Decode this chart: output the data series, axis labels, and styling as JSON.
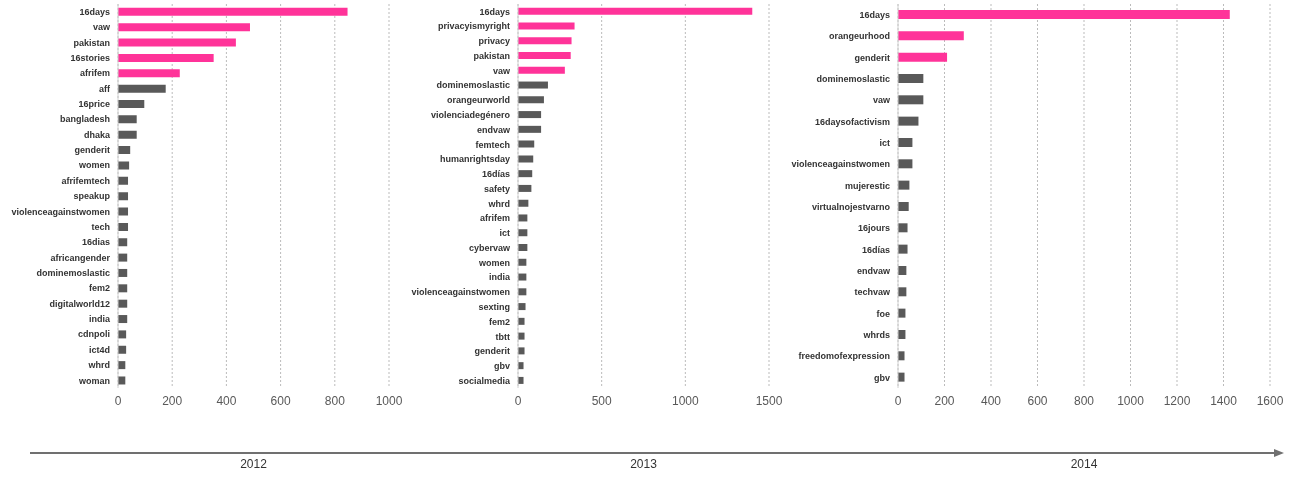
{
  "chart_data": [
    {
      "type": "bar",
      "orientation": "horizontal",
      "xlabel": "2012",
      "categories": [
        "16days",
        "vaw",
        "pakistan",
        "16stories",
        "afrifem",
        "aff",
        "16price",
        "bangladesh",
        "dhaka",
        "genderit",
        "women",
        "afrifemtech",
        "speakup",
        "violenceagainstwomen",
        "tech",
        "16dias",
        "africangender",
        "dominemoslastic",
        "fem2",
        "digitalworld12",
        "india",
        "cdnpoli",
        "ict4d",
        "whrd",
        "woman"
      ],
      "values": [
        847,
        487,
        435,
        353,
        228,
        176,
        97,
        69,
        69,
        45,
        41,
        37,
        37,
        37,
        37,
        34,
        34,
        34,
        34,
        34,
        34,
        30,
        30,
        27,
        27
      ],
      "colors": [
        "#ff3399",
        "#ff3399",
        "#ff3399",
        "#ff3399",
        "#ff3399",
        "#595959",
        "#595959",
        "#595959",
        "#595959",
        "#595959",
        "#595959",
        "#595959",
        "#595959",
        "#595959",
        "#595959",
        "#595959",
        "#595959",
        "#595959",
        "#595959",
        "#595959",
        "#595959",
        "#595959",
        "#595959",
        "#595959",
        "#595959"
      ],
      "xlim": [
        0,
        1000
      ],
      "xticks": [
        0,
        200,
        400,
        600,
        800,
        1000
      ],
      "grid": "x"
    },
    {
      "type": "bar",
      "orientation": "horizontal",
      "xlabel": "2013",
      "categories": [
        "16days",
        "privacyismyright",
        "privacy",
        "pakistan",
        "vaw",
        "dominemoslastic",
        "orangeurworld",
        "violenciadegénero",
        "endvaw",
        "femtech",
        "humanrightsday",
        "16días",
        "safety",
        "whrd",
        "afrifem",
        "ict",
        "cybervaw",
        "women",
        "india",
        "violenceagainstwomen",
        "sexting",
        "fem2",
        "tbtt",
        "genderit",
        "gbv",
        "socialmedia"
      ],
      "values": [
        1400,
        338,
        320,
        315,
        280,
        179,
        155,
        138,
        138,
        97,
        91,
        85,
        80,
        62,
        56,
        56,
        56,
        50,
        50,
        50,
        45,
        39,
        39,
        39,
        33,
        33
      ],
      "colors": [
        "#ff3399",
        "#ff3399",
        "#ff3399",
        "#ff3399",
        "#ff3399",
        "#595959",
        "#595959",
        "#595959",
        "#595959",
        "#595959",
        "#595959",
        "#595959",
        "#595959",
        "#595959",
        "#595959",
        "#595959",
        "#595959",
        "#595959",
        "#595959",
        "#595959",
        "#595959",
        "#595959",
        "#595959",
        "#595959",
        "#595959",
        "#595959"
      ],
      "xlim": [
        0,
        1500
      ],
      "xticks": [
        0,
        500,
        1000,
        1500
      ],
      "grid": "x"
    },
    {
      "type": "bar",
      "orientation": "horizontal",
      "xlabel": "2014",
      "categories": [
        "16days",
        "orangeurhood",
        "genderit",
        "dominemoslastic",
        "vaw",
        "16daysofactivism",
        "ict",
        "violenceagainstwomen",
        "mujerestic",
        "virtualnojestvarno",
        "16jours",
        "16días",
        "endvaw",
        "techvaw",
        "foe",
        "whrds",
        "freedomofexpression",
        "gbv"
      ],
      "values": [
        1427,
        283,
        211,
        109,
        109,
        88,
        62,
        62,
        49,
        46,
        41,
        41,
        36,
        36,
        32,
        32,
        28,
        28
      ],
      "colors": [
        "#ff3399",
        "#ff3399",
        "#ff3399",
        "#595959",
        "#595959",
        "#595959",
        "#595959",
        "#595959",
        "#595959",
        "#595959",
        "#595959",
        "#595959",
        "#595959",
        "#595959",
        "#595959",
        "#595959",
        "#595959",
        "#595959"
      ],
      "xlim": [
        0,
        1600
      ],
      "xticks": [
        0,
        200,
        400,
        600,
        800,
        1000,
        1200,
        1400,
        1600
      ],
      "grid": "x"
    }
  ]
}
